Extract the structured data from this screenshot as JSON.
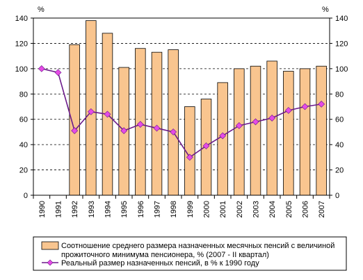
{
  "chart_data": {
    "type": "bar",
    "categories": [
      "1990",
      "1991",
      "1992",
      "1993",
      "1994",
      "1995",
      "1996",
      "1997",
      "1998",
      "1999",
      "2000",
      "2001",
      "2002",
      "2003",
      "2004",
      "2005",
      "2006",
      "2007"
    ],
    "series": [
      {
        "name": "Соотношение среднего размера назначенных месячных пенсий с величиной прожиточного минимума пенсионера, % (2007 - II квартал)",
        "name_lines": [
          "Соотношение среднего размера назначенных месячных пенсий с величиной",
          "прожиточного минимума пенсионера, % (2007 - II квартал)"
        ],
        "type": "bar",
        "color": "#F9C58F",
        "values": [
          null,
          null,
          119,
          138,
          128,
          101,
          116,
          113,
          115,
          70,
          76,
          89,
          100,
          102,
          106,
          98,
          100,
          102
        ]
      },
      {
        "name": "Реальный размер назначенных пенсий, в % к 1990 году",
        "type": "line",
        "color": "#6B1A8A",
        "marker_color": "#E64BE6",
        "values": [
          100,
          97,
          51,
          66,
          64,
          51,
          56,
          53,
          50,
          30,
          39,
          47,
          55,
          58,
          61,
          67,
          70,
          72
        ]
      }
    ],
    "y_axis_left": {
      "ticks": [
        "0",
        "20",
        "40",
        "60",
        "80",
        "100",
        "120",
        "140"
      ],
      "unit": "%"
    },
    "y_axis_right": {
      "ticks": [
        "0",
        "20",
        "40",
        "60",
        "80",
        "100",
        "120",
        "140"
      ],
      "unit": "%"
    },
    "ylim": [
      0,
      140
    ],
    "grid": true,
    "legend": "bottom"
  }
}
